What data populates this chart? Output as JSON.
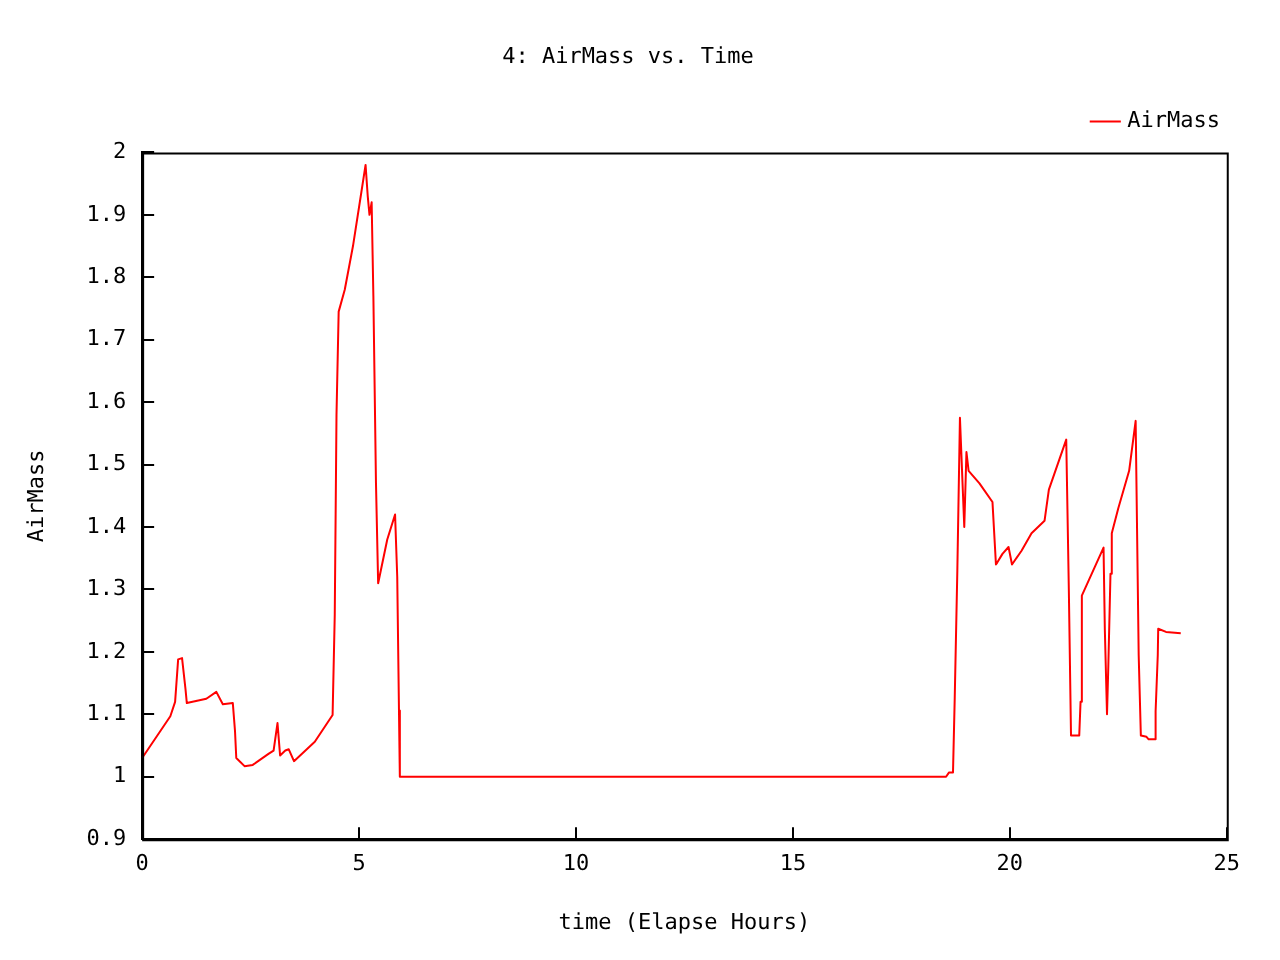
{
  "chart_data": {
    "type": "line",
    "title": "4: AirMass vs. Time",
    "xlabel": "time (Elapse Hours)",
    "ylabel": "AirMass",
    "xlim": [
      0,
      25
    ],
    "xticks": [
      0,
      5,
      10,
      15,
      20,
      25
    ],
    "ylim": [
      0.9,
      2
    ],
    "yticks": [
      0.9,
      1,
      1.1,
      1.2,
      1.3,
      1.4,
      1.5,
      1.6,
      1.7,
      1.8,
      1.9,
      2
    ],
    "grid": false,
    "legend": "top right",
    "marker": "none",
    "line_style": "solid",
    "series": [
      {
        "name": "AirMass",
        "color": "#ff0000",
        "x": [
          0,
          0.65,
          0.76,
          0.83,
          0.92,
          1.0,
          1.03,
          1.48,
          1.71,
          1.86,
          2.09,
          2.14,
          2.17,
          2.36,
          2.55,
          2.92,
          3.03,
          3.12,
          3.18,
          3.3,
          3.38,
          3.5,
          3.98,
          4.39,
          4.44,
          4.48,
          4.53,
          4.67,
          4.86,
          5.05,
          5.15,
          5.2,
          5.24,
          5.29,
          5.33,
          5.39,
          5.44,
          5.65,
          5.83,
          5.88,
          5.92,
          5.94,
          18.53,
          18.6,
          18.69,
          18.73,
          18.79,
          18.85,
          18.95,
          19.0,
          19.05,
          19.3,
          19.6,
          19.68,
          19.71,
          19.83,
          19.97,
          20.05,
          20.27,
          20.5,
          20.8,
          20.9,
          21.3,
          21.36,
          21.41,
          21.6,
          21.63,
          21.66,
          22.16,
          22.19,
          22.24,
          22.27,
          22.32,
          22.35,
          22.5,
          22.75,
          22.9,
          22.97,
          23.02,
          23.15,
          23.2,
          23.33,
          23.36,
          23.41,
          23.42,
          23.6,
          23.94
        ],
        "values": [
          1.03,
          1.097,
          1.12,
          1.188,
          1.19,
          1.14,
          1.118,
          1.125,
          1.136,
          1.116,
          1.118,
          1.074,
          1.03,
          1.017,
          1.019,
          1.037,
          1.042,
          1.086,
          1.034,
          1.042,
          1.044,
          1.025,
          1.056,
          1.099,
          1.26,
          1.58,
          1.745,
          1.78,
          1.85,
          1.935,
          1.98,
          1.93,
          1.9,
          1.92,
          1.77,
          1.47,
          1.31,
          1.38,
          1.42,
          1.32,
          1.106,
          1.0,
          1.0,
          1.007,
          1.007,
          1.126,
          1.33,
          1.575,
          1.4,
          1.52,
          1.49,
          1.47,
          1.44,
          1.34,
          1.343,
          1.357,
          1.368,
          1.34,
          1.362,
          1.39,
          1.41,
          1.46,
          1.54,
          1.3,
          1.066,
          1.066,
          1.12,
          1.29,
          1.367,
          1.235,
          1.1,
          1.177,
          1.325,
          1.39,
          1.43,
          1.49,
          1.57,
          1.195,
          1.066,
          1.064,
          1.06,
          1.06,
          1.105,
          1.195,
          1.237,
          1.232,
          1.23
        ]
      }
    ]
  }
}
